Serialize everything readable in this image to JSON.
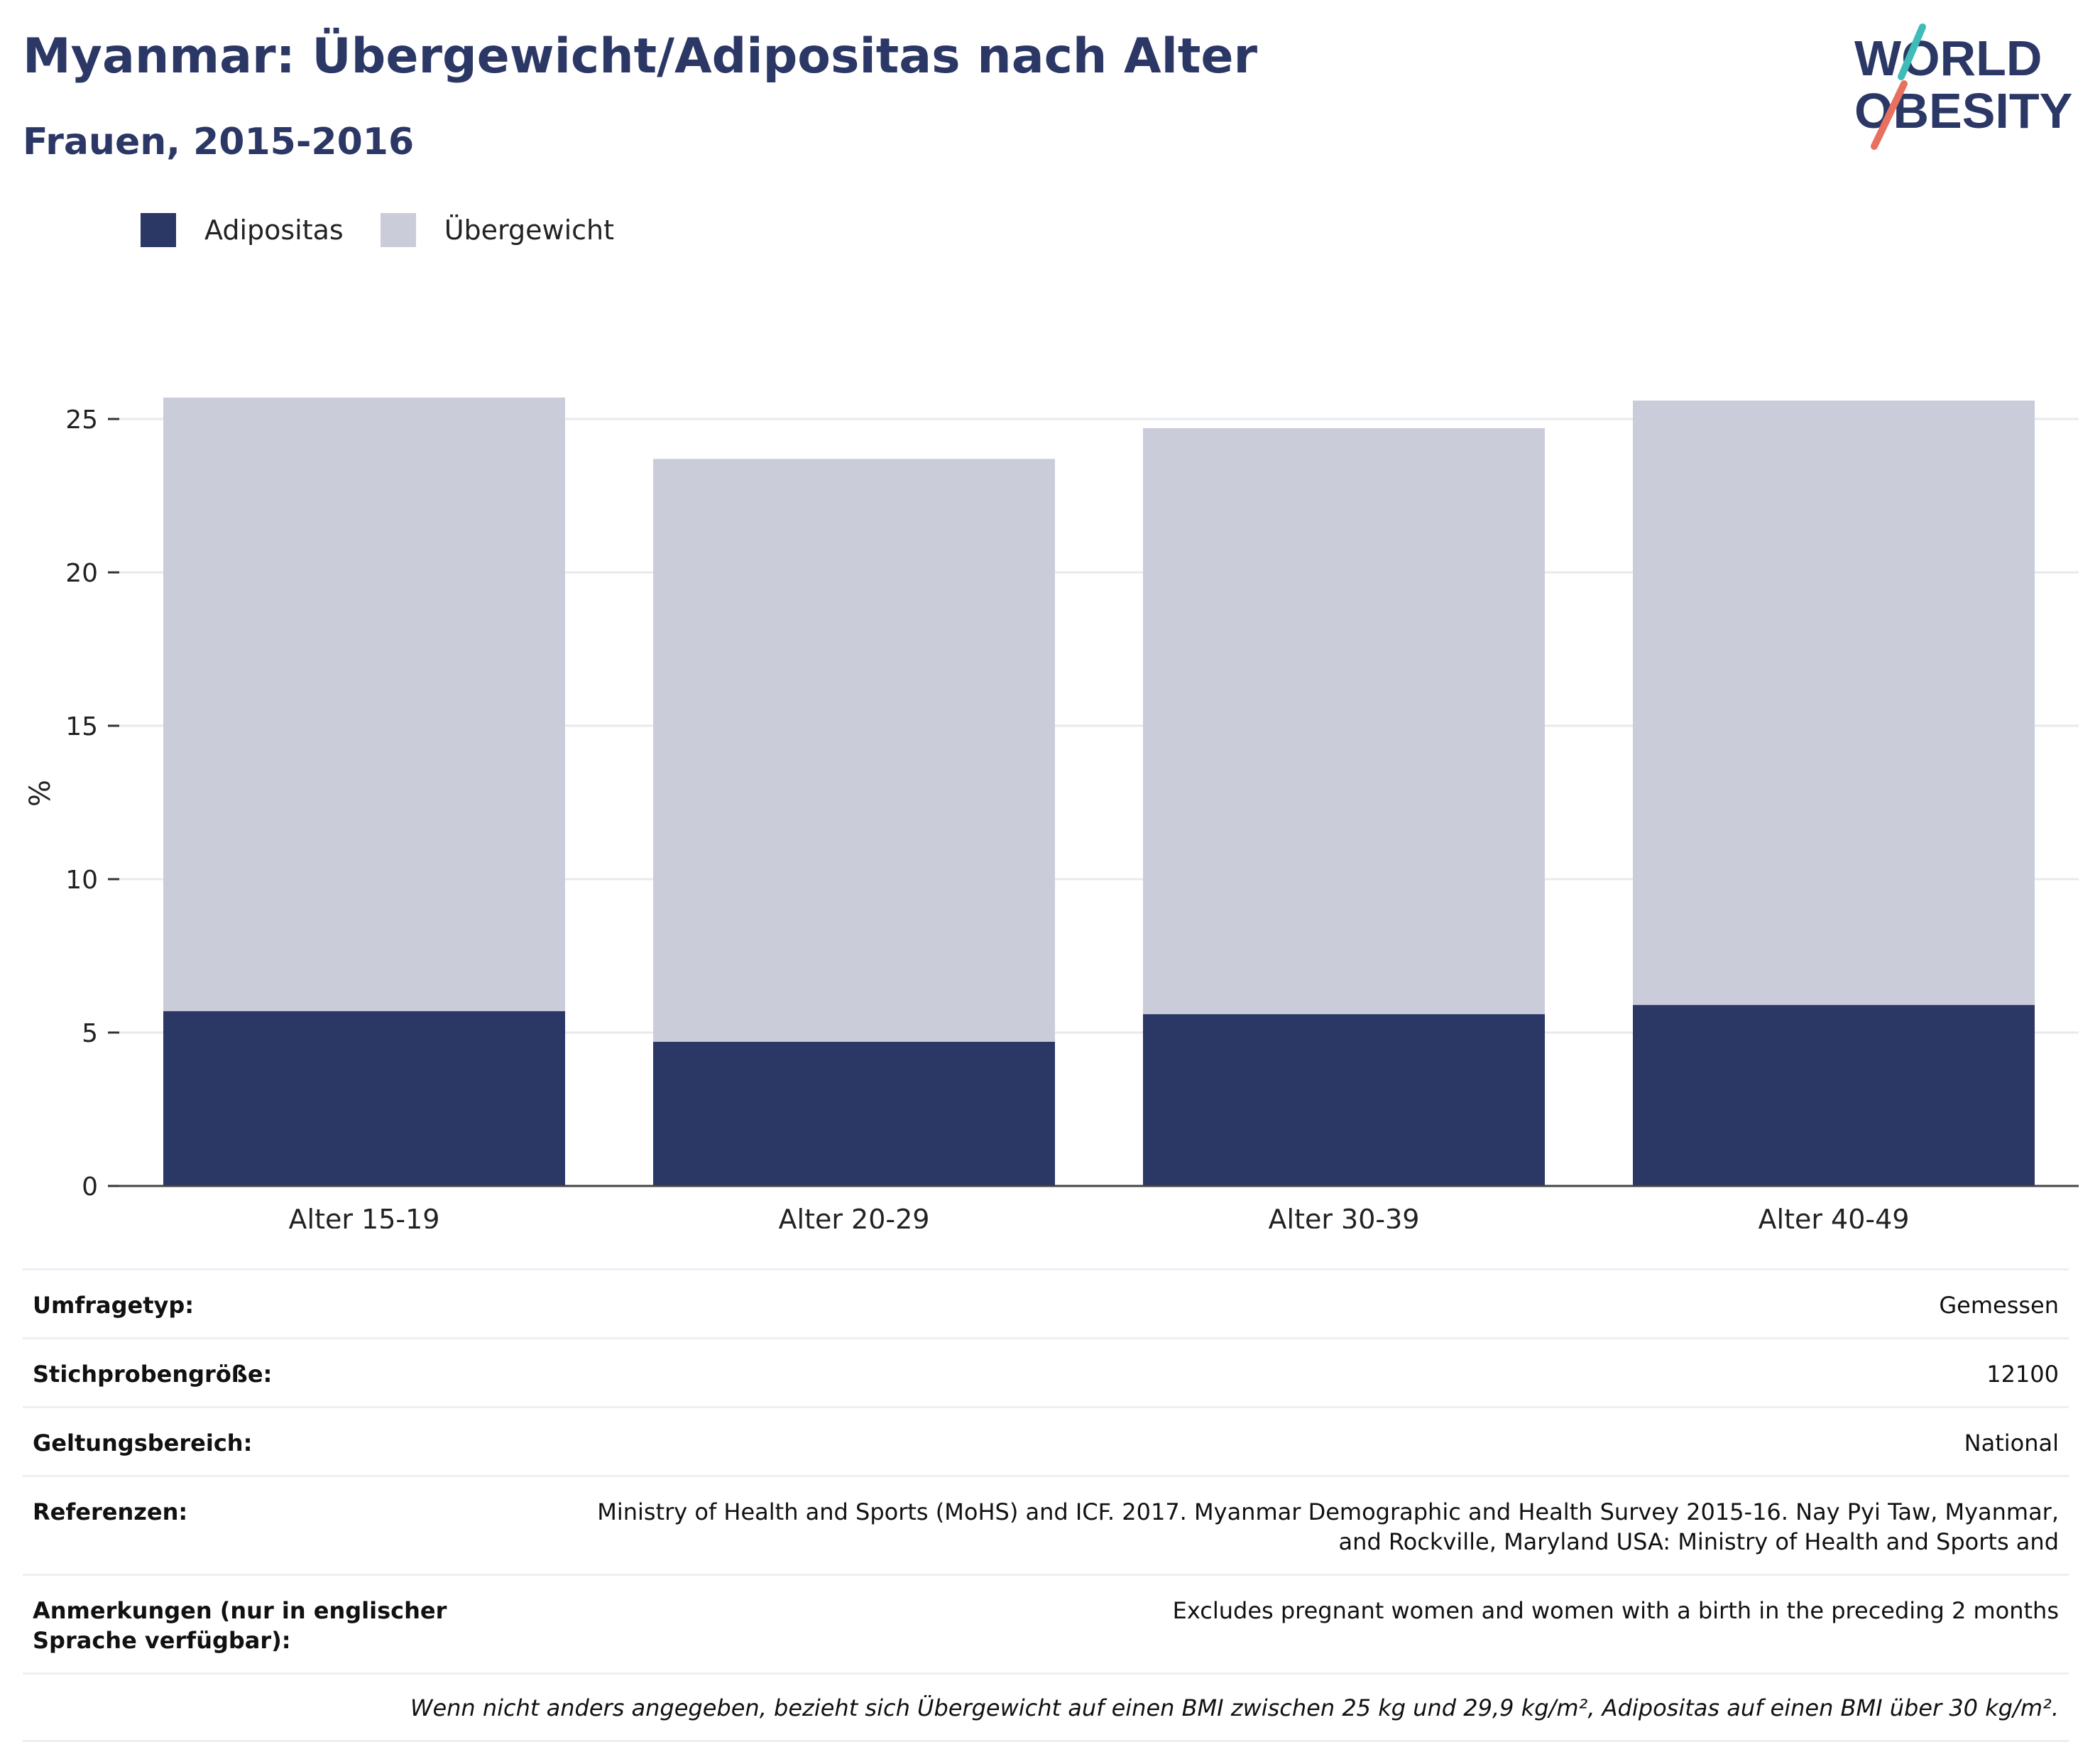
{
  "header": {
    "title": "Myanmar: Übergewicht/Adipositas nach Alter",
    "subtitle": "Frauen, 2015-2016"
  },
  "logo": {
    "line1": "WORLD",
    "line2": "OBESITY",
    "colors": {
      "text": "#2b3765",
      "accent_teal": "#3dbcb8",
      "accent_coral": "#e8705f"
    }
  },
  "legend": {
    "items": [
      {
        "label": "Adipositas",
        "color": "#2b3765"
      },
      {
        "label": "Übergewicht",
        "color": "#cacdd9"
      }
    ]
  },
  "chart_data": {
    "type": "bar",
    "stacked": true,
    "categories": [
      "Alter 15-19",
      "Alter 20-29",
      "Alter 30-39",
      "Alter 40-49"
    ],
    "series": [
      {
        "name": "Adipositas",
        "values": [
          5.7,
          4.7,
          5.6,
          5.9
        ],
        "color": "#2b3765"
      },
      {
        "name": "Übergewicht",
        "values": [
          20.0,
          19.0,
          19.1,
          19.7
        ],
        "color": "#cacdd9"
      }
    ],
    "ylabel": "%",
    "ylim": [
      0,
      26
    ],
    "yticks": [
      0,
      5,
      10,
      15,
      20,
      25
    ],
    "grid": true,
    "legend_position": "top-left"
  },
  "info": {
    "rows": [
      {
        "label": "Umfragetyp:",
        "value": "Gemessen"
      },
      {
        "label": "Stichprobengröße:",
        "value": "12100"
      },
      {
        "label": "Geltungsbereich:",
        "value": "National"
      },
      {
        "label": "Referenzen:",
        "value": "Ministry of Health and Sports (MoHS) and ICF. 2017. Myanmar Demographic and Health Survey 2015-16. Nay Pyi Taw, Myanmar, and Rockville, Maryland USA: Ministry of Health and Sports and"
      },
      {
        "label": "Anmerkungen (nur in englischer Sprache verfügbar):",
        "value": "Excludes pregnant women and women with a birth in the preceding 2 months"
      }
    ],
    "note": "Wenn nicht anders angegeben, bezieht sich Übergewicht auf einen BMI zwischen 25 kg und 29,9 kg/m², Adipositas auf einen BMI über 30 kg/m²."
  }
}
